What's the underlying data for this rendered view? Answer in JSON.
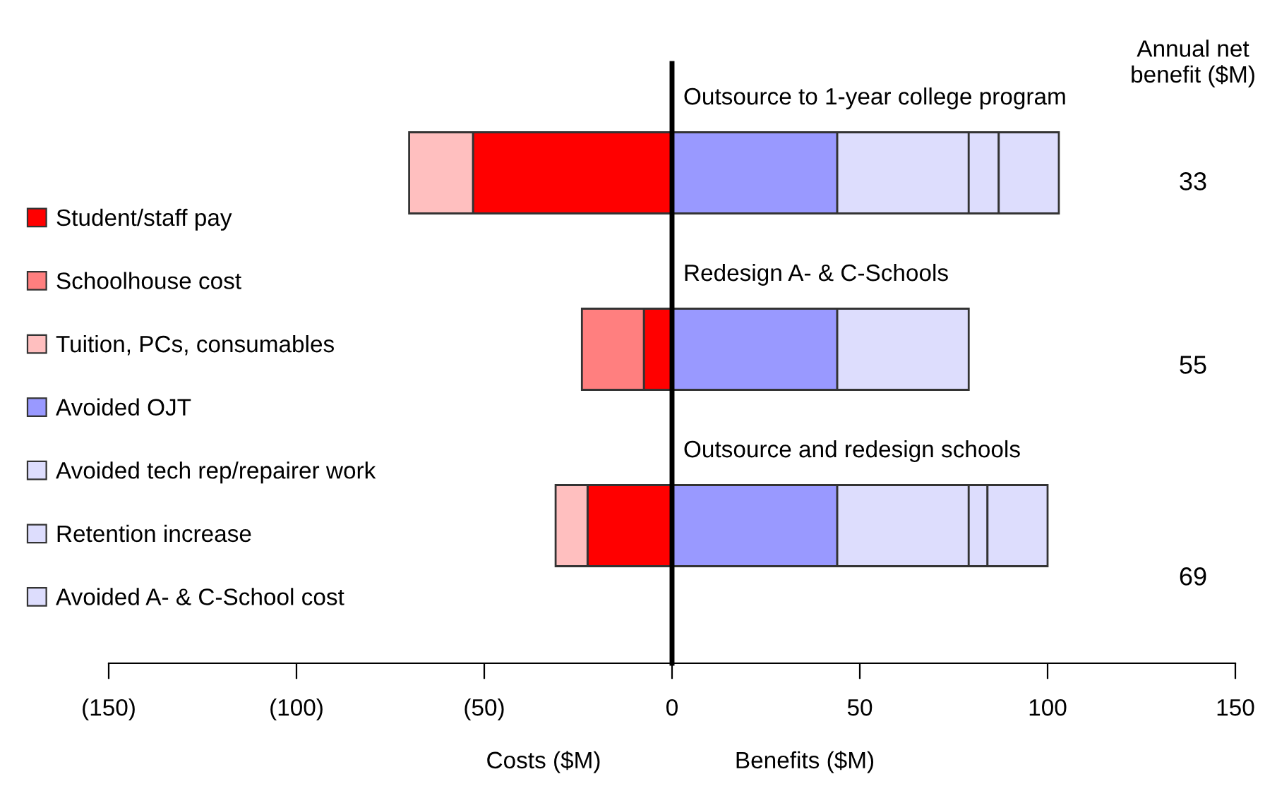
{
  "chart_data": {
    "type": "bar",
    "orientation": "horizontal",
    "stacked": true,
    "categories": [
      "Outsource to 1-year college program",
      "Redesign A- & C-Schools",
      "Outsource and redesign schools"
    ],
    "series": [
      {
        "name": "Student/staff pay",
        "color": "#ff0000",
        "values": [
          -53,
          -7.5,
          -22.5
        ]
      },
      {
        "name": "Schoolhouse cost",
        "color": "#ff7f7f",
        "values": [
          null,
          -16.5,
          null
        ]
      },
      {
        "name": "Tuition, PCs, consumables",
        "color": "#ffbfbf",
        "values": [
          -17,
          null,
          -8.5
        ]
      },
      {
        "name": "Avoided OJT",
        "color": "#9999ff",
        "values": [
          44,
          44,
          44
        ]
      },
      {
        "name": "Avoided tech rep/repairer work",
        "color": "#ddddfd",
        "values": [
          35,
          35,
          35
        ]
      },
      {
        "name": "Retention increase",
        "color": "#ddddfd",
        "values": [
          8,
          null,
          5
        ]
      },
      {
        "name": "Avoided A- & C-School cost",
        "color": "#ddddfd",
        "values": [
          16,
          null,
          16
        ]
      }
    ],
    "xlim": [
      -150,
      150
    ],
    "xticks": [
      {
        "value": -150,
        "label": "(150)"
      },
      {
        "value": -100,
        "label": "(100)"
      },
      {
        "value": -50,
        "label": "(50)"
      },
      0,
      50,
      100,
      150
    ],
    "annotations": [
      "Annual net benefit ($M)",
      "Costs ($M)",
      "Benefits ($M)",
      "33",
      "55",
      "69"
    ],
    "legend": "left",
    "grid": false
  }
}
